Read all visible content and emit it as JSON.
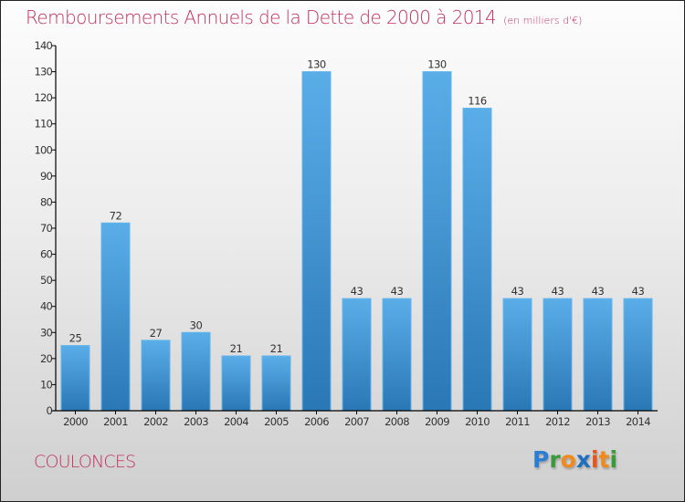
{
  "header": {
    "title": "Remboursements Annuels de la Dette de 2000 à 2014",
    "subtitle": "(en milliers d'€)"
  },
  "footer": {
    "commune": "COULONCES",
    "logo_letters": [
      {
        "char": "P",
        "color": "#2a7fd4"
      },
      {
        "char": "r",
        "color": "#3a9a3a"
      },
      {
        "char": "o",
        "color": "#f08a1c"
      },
      {
        "char": "x",
        "color": "#1e6fc0"
      },
      {
        "char": "i",
        "color": "#e8541c"
      },
      {
        "char": "t",
        "color": "#f08a1c"
      },
      {
        "char": "i",
        "color": "#3a9a3a"
      }
    ]
  },
  "colors": {
    "title": "#c2315e",
    "bar_top": "#5aaee8",
    "bar_bottom": "#2a77b5",
    "axis": "#000000",
    "label": "#333333"
  },
  "chart_data": {
    "type": "bar",
    "title": "Remboursements Annuels de la Dette de 2000 à 2014",
    "subtitle": "(en milliers d'€)",
    "xlabel": "",
    "ylabel": "",
    "categories": [
      "2000",
      "2001",
      "2002",
      "2003",
      "2004",
      "2005",
      "2006",
      "2007",
      "2008",
      "2009",
      "2010",
      "2011",
      "2012",
      "2013",
      "2014"
    ],
    "values": [
      25,
      72,
      27,
      30,
      21,
      21,
      130,
      43,
      43,
      130,
      116,
      43,
      43,
      43,
      43
    ],
    "ylim": [
      0,
      140
    ],
    "yticks": [
      0,
      10,
      20,
      30,
      40,
      50,
      60,
      70,
      80,
      90,
      100,
      110,
      120,
      130,
      140
    ],
    "grid": false,
    "legend": "none",
    "data_labels": true
  }
}
